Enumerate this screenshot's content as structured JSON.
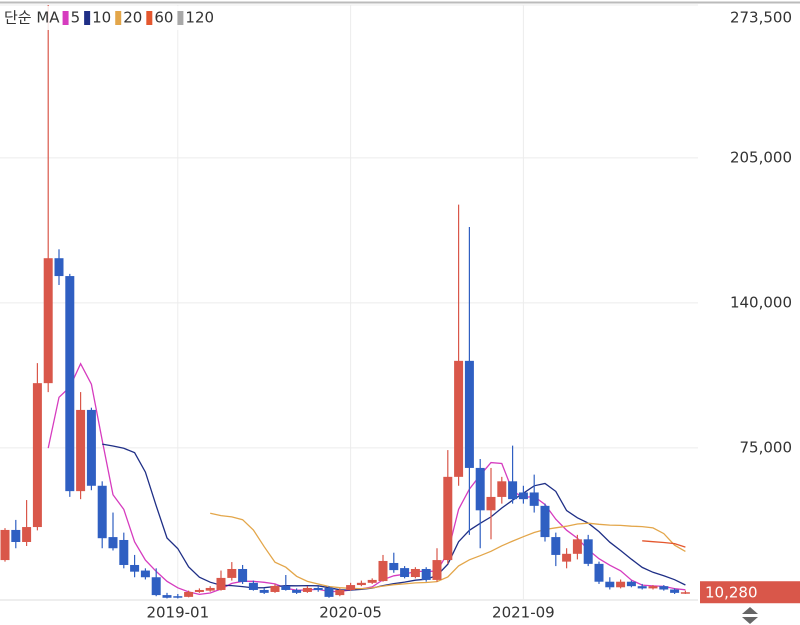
{
  "chart_data": {
    "type": "candlestick",
    "legend_title": "단순 MA",
    "categories": [
      null,
      null,
      null,
      null,
      null,
      null,
      null,
      null,
      null,
      null,
      null,
      null,
      null,
      null,
      null,
      null,
      "2019-01",
      null,
      null,
      null,
      null,
      null,
      null,
      null,
      null,
      null,
      null,
      null,
      null,
      null,
      null,
      null,
      "2020-05",
      null,
      null,
      null,
      null,
      null,
      null,
      null,
      null,
      null,
      null,
      null,
      null,
      null,
      null,
      null,
      "2021-09",
      null,
      null,
      null,
      null,
      null,
      null,
      null,
      null,
      null,
      null,
      null,
      null,
      null,
      null,
      null
    ],
    "open": [
      24700,
      38200,
      32800,
      39500,
      104000,
      160000,
      152000,
      55600,
      92000,
      58000,
      35000,
      33700,
      22500,
      20000,
      17000,
      9000,
      8500,
      8200,
      10400,
      11000,
      11300,
      16700,
      20700,
      14500,
      11300,
      10400,
      13100,
      11300,
      10400,
      12200,
      12200,
      9000,
      11300,
      13500,
      14500,
      15300,
      23400,
      21100,
      17100,
      20700,
      15800,
      24700,
      62000,
      114000,
      66000,
      47000,
      53000,
      60000,
      55000,
      55000,
      49000,
      35000,
      24000,
      27500,
      34000,
      23000,
      15000,
      12500,
      15000,
      13000,
      12000,
      13000,
      11500,
      10000
    ],
    "high": [
      39000,
      42700,
      51600,
      113000,
      273500,
      164000,
      153000,
      100000,
      93000,
      60000,
      46000,
      37000,
      27000,
      21000,
      21000,
      10000,
      9500,
      11000,
      12000,
      13000,
      20000,
      23800,
      22500,
      15500,
      12000,
      14000,
      18000,
      12000,
      13000,
      13000,
      13000,
      12000,
      14500,
      15500,
      16500,
      27000,
      28000,
      22000,
      21500,
      21500,
      30000,
      74000,
      184000,
      174000,
      70000,
      66000,
      62000,
      76000,
      58000,
      63000,
      50000,
      37000,
      30000,
      36000,
      36000,
      24000,
      17000,
      16000,
      15500,
      14000,
      13500,
      13500,
      12000,
      11000
    ],
    "low": [
      24000,
      30000,
      31000,
      38000,
      100000,
      148000,
      53000,
      52000,
      56000,
      30000,
      29000,
      21000,
      17000,
      16000,
      8500,
      7500,
      7500,
      8000,
      10000,
      10500,
      11000,
      15500,
      14000,
      11000,
      9500,
      10000,
      11000,
      9500,
      10000,
      10500,
      7800,
      8500,
      11000,
      13000,
      14000,
      15000,
      19000,
      16500,
      16500,
      15000,
      15000,
      23000,
      58000,
      36000,
      30000,
      34000,
      50000,
      50000,
      50000,
      46000,
      33000,
      22000,
      21000,
      25000,
      22000,
      14000,
      11500,
      12000,
      12500,
      11500,
      11500,
      11000,
      9500,
      9500
    ],
    "close": [
      38200,
      32800,
      39500,
      104000,
      160000,
      152000,
      55600,
      92000,
      58000,
      34500,
      30000,
      22500,
      19500,
      17000,
      9000,
      7800,
      8000,
      10400,
      11300,
      12200,
      16700,
      20700,
      14900,
      11300,
      10000,
      13100,
      11300,
      10000,
      12200,
      11300,
      8200,
      11300,
      13500,
      14500,
      15800,
      24300,
      20200,
      17100,
      20700,
      15800,
      24700,
      62000,
      114000,
      66000,
      47000,
      53000,
      60000,
      52000,
      52000,
      49000,
      35000,
      27000,
      27500,
      34000,
      23000,
      15000,
      12500,
      15000,
      13000,
      12000,
      13000,
      11500,
      10000,
      10280
    ],
    "up_color": "#d9574a",
    "down_color": "#2f5fc2",
    "series": [
      {
        "name": "5",
        "color": "#d63cbf",
        "values": [
          null,
          null,
          null,
          null,
          74900,
          97660,
          102220,
          112720,
          103520,
          78420,
          54020,
          47400,
          32900,
          24700,
          19600,
          15160,
          12260,
          10440,
          9300,
          9940,
          11720,
          14260,
          15160,
          15160,
          14720,
          14000,
          12120,
          11140,
          11320,
          11580,
          10600,
          10600,
          11300,
          11760,
          12660,
          15880,
          17660,
          18380,
          19620,
          19620,
          19700,
          28060,
          47440,
          56500,
          62740,
          68400,
          68000,
          55600,
          52800,
          53200,
          49600,
          43000,
          38100,
          34500,
          29300,
          25300,
          22400,
          19900,
          15700,
          13500,
          13100,
          12900,
          11900,
          11356
        ]
      },
      {
        "name": "10",
        "color": "#1f2f86",
        "values": [
          null,
          null,
          null,
          null,
          null,
          null,
          null,
          null,
          null,
          76660,
          75840,
          74810,
          72810,
          64110,
          49010,
          34590,
          29830,
          21670,
          17000,
          14770,
          13440,
          13260,
          12800,
          12230,
          12330,
          12860,
          13190,
          13150,
          13240,
          13150,
          12300,
          11360,
          11220,
          11540,
          12120,
          13240,
          14130,
          14840,
          15690,
          16140,
          17790,
          22860,
          32910,
          38060,
          41180,
          44050,
          48030,
          51520,
          54650,
          57970,
          59000,
          55500,
          46850,
          43650,
          41250,
          37450,
          32700,
          29000,
          25100,
          21400,
          19200,
          17650,
          15900,
          13528
        ]
      },
      {
        "name": "20",
        "color": "#e3a64a",
        "values": [
          null,
          null,
          null,
          null,
          null,
          null,
          null,
          null,
          null,
          null,
          null,
          null,
          null,
          null,
          null,
          null,
          null,
          null,
          null,
          45715,
          44640,
          44035,
          42805,
          38170,
          30670,
          23725,
          21510,
          17410,
          15120,
          13960,
          12870,
          12310,
          12010,
          11885,
          12225,
          13050,
          13660,
          13995,
          14465,
          14645,
          15045,
          17110,
          22065,
          24800,
          26650,
          28645,
          31080,
          33180,
          35170,
          37055,
          38395,
          39180,
          39880,
          40855,
          41215,
          40750,
          40365,
          40260,
          39875,
          39685,
          39100,
          36575,
          31375,
          28589
        ]
      },
      {
        "name": "60",
        "color": "#e4572e",
        "values": [
          null,
          null,
          null,
          null,
          null,
          null,
          null,
          null,
          null,
          null,
          null,
          null,
          null,
          null,
          null,
          null,
          null,
          null,
          null,
          null,
          null,
          null,
          null,
          null,
          null,
          null,
          null,
          null,
          null,
          null,
          null,
          null,
          null,
          null,
          null,
          null,
          null,
          null,
          null,
          null,
          null,
          null,
          null,
          null,
          null,
          null,
          null,
          null,
          null,
          null,
          null,
          null,
          null,
          null,
          null,
          null,
          null,
          null,
          null,
          33348,
          32928,
          32573,
          32082,
          30520
        ]
      },
      {
        "name": "120",
        "color": "#a8a8a8",
        "values": [
          null,
          null,
          null,
          null,
          null,
          null,
          null,
          null,
          null,
          null,
          null,
          null,
          null,
          null,
          null,
          null,
          null,
          null,
          null,
          null,
          null,
          null,
          null,
          null,
          null,
          null,
          null,
          null,
          null,
          null,
          null,
          null,
          null,
          null,
          null,
          null,
          null,
          null,
          null,
          null,
          null,
          null,
          null,
          null,
          null,
          null,
          null,
          null,
          null,
          null,
          null,
          null,
          null,
          null,
          null,
          null,
          null,
          null,
          null,
          null,
          null,
          null,
          null,
          null
        ]
      }
    ],
    "ylim": [
      6800,
      273500
    ],
    "yticks": [
      {
        "value": 75000,
        "label": "75,000"
      },
      {
        "value": 140000,
        "label": "140,000"
      },
      {
        "value": 205000,
        "label": "205,000"
      },
      {
        "value": 273500,
        "label": "273,500"
      }
    ],
    "last_price": {
      "value": 10280,
      "label": "10,280"
    },
    "grid": true
  }
}
